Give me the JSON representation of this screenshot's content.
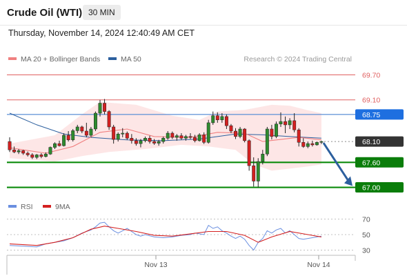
{
  "header": {
    "title": "Crude Oil (WTI)",
    "timeframe": "30 MIN",
    "datetime": "Thursday, November 14, 2024 12:40:49 AM CET"
  },
  "legend": {
    "ma20": "MA 20 + Bollinger Bands",
    "ma50": "MA 50",
    "attribution": "Research © 2024 Trading Central",
    "rsi": "RSI",
    "rsi_ma": "9MA"
  },
  "colors": {
    "bull": "#2e8b2e",
    "bear": "#d42020",
    "ma20": "#f08080",
    "ma50": "#2c5f9e",
    "band_fill": "#fde2e2",
    "resistance": "#e06060",
    "pivot_blue": "#5b8fd6",
    "support": "#0a8a0a",
    "current": "#333333",
    "arrow": "#2c5f9e",
    "rsi": "#6a8fe0",
    "rsi_ma": "#d42020"
  },
  "chart_data": [
    {
      "type": "candlestick",
      "series": "Crude Oil (WTI) 30 MIN",
      "ylim": [
        66.86,
        69.84
      ],
      "x_ticks": [
        "Nov 13",
        "Nov 14"
      ],
      "levels": [
        {
          "value": 69.7,
          "label": "69.70",
          "kind": "resistance"
        },
        {
          "value": 69.1,
          "label": "69.10",
          "kind": "resistance"
        },
        {
          "value": 68.75,
          "label": "68.75",
          "kind": "pivot"
        },
        {
          "value": 68.1,
          "label": "68.10",
          "kind": "current"
        },
        {
          "value": 67.6,
          "label": "67.60",
          "kind": "support"
        },
        {
          "value": 67.0,
          "label": "67.00",
          "kind": "support"
        }
      ],
      "candles": [
        [
          68.1,
          68.2,
          67.85,
          67.9
        ],
        [
          67.9,
          67.98,
          67.82,
          67.85
        ],
        [
          67.85,
          67.92,
          67.8,
          67.88
        ],
        [
          67.88,
          67.9,
          67.78,
          67.82
        ],
        [
          67.82,
          67.86,
          67.74,
          67.78
        ],
        [
          67.78,
          67.82,
          67.68,
          67.72
        ],
        [
          67.72,
          67.8,
          67.68,
          67.78
        ],
        [
          67.78,
          67.82,
          67.7,
          67.74
        ],
        [
          67.74,
          67.84,
          67.72,
          67.8
        ],
        [
          67.8,
          67.98,
          67.78,
          67.96
        ],
        [
          67.96,
          68.08,
          67.92,
          68.05
        ],
        [
          68.05,
          68.12,
          67.98,
          68.0
        ],
        [
          68.0,
          68.3,
          67.98,
          68.25
        ],
        [
          68.25,
          68.35,
          68.1,
          68.14
        ],
        [
          68.14,
          68.4,
          68.1,
          68.36
        ],
        [
          68.36,
          68.5,
          68.3,
          68.45
        ],
        [
          68.45,
          68.48,
          68.3,
          68.35
        ],
        [
          68.35,
          68.55,
          68.2,
          68.25
        ],
        [
          68.25,
          68.45,
          68.2,
          68.4
        ],
        [
          68.4,
          68.82,
          68.35,
          68.78
        ],
        [
          68.78,
          69.1,
          68.7,
          69.02
        ],
        [
          69.02,
          69.12,
          68.75,
          68.82
        ],
        [
          68.82,
          68.85,
          68.38,
          68.45
        ],
        [
          68.45,
          68.5,
          68.05,
          68.15
        ],
        [
          68.15,
          68.32,
          68.1,
          68.28
        ],
        [
          68.28,
          68.42,
          68.2,
          68.3
        ],
        [
          68.3,
          68.34,
          68.14,
          68.18
        ],
        [
          68.18,
          68.28,
          68.05,
          68.12
        ],
        [
          68.12,
          68.18,
          68.0,
          68.05
        ],
        [
          68.05,
          68.16,
          67.96,
          68.12
        ],
        [
          68.12,
          68.22,
          68.08,
          68.18
        ],
        [
          68.18,
          68.24,
          68.05,
          68.1
        ],
        [
          68.1,
          68.16,
          68.02,
          68.06
        ],
        [
          68.06,
          68.14,
          68.0,
          68.1
        ],
        [
          68.1,
          68.22,
          68.05,
          68.18
        ],
        [
          68.18,
          68.35,
          68.14,
          68.3
        ],
        [
          68.3,
          68.34,
          68.16,
          68.2
        ],
        [
          68.2,
          68.28,
          68.12,
          68.24
        ],
        [
          68.24,
          68.3,
          68.14,
          68.18
        ],
        [
          68.18,
          68.26,
          68.12,
          68.22
        ],
        [
          68.22,
          68.3,
          68.16,
          68.2
        ],
        [
          68.2,
          68.26,
          68.08,
          68.12
        ],
        [
          68.12,
          68.3,
          68.1,
          68.26
        ],
        [
          68.26,
          68.32,
          68.04,
          68.08
        ],
        [
          68.08,
          68.62,
          68.05,
          68.55
        ],
        [
          68.55,
          68.82,
          68.5,
          68.72
        ],
        [
          68.72,
          68.8,
          68.55,
          68.62
        ],
        [
          68.62,
          68.78,
          68.55,
          68.7
        ],
        [
          68.7,
          68.75,
          68.4,
          68.48
        ],
        [
          68.48,
          68.52,
          68.3,
          68.35
        ],
        [
          68.35,
          68.42,
          68.16,
          68.22
        ],
        [
          68.22,
          68.45,
          68.18,
          68.4
        ],
        [
          68.4,
          68.42,
          68.08,
          68.12
        ],
        [
          68.12,
          68.15,
          67.4,
          67.52
        ],
        [
          67.52,
          67.72,
          67.02,
          67.15
        ],
        [
          67.15,
          67.7,
          67.0,
          67.62
        ],
        [
          67.62,
          67.9,
          67.55,
          67.8
        ],
        [
          67.8,
          68.45,
          67.75,
          68.4
        ],
        [
          68.4,
          68.5,
          68.15,
          68.22
        ],
        [
          68.22,
          68.58,
          68.18,
          68.52
        ],
        [
          68.52,
          68.8,
          68.45,
          68.58
        ],
        [
          68.58,
          68.7,
          68.3,
          68.5
        ],
        [
          68.5,
          68.66,
          68.4,
          68.6
        ],
        [
          68.6,
          68.78,
          68.32,
          68.38
        ],
        [
          68.38,
          68.42,
          67.98,
          68.08
        ],
        [
          68.08,
          68.18,
          67.95,
          67.98
        ],
        [
          67.98,
          68.1,
          67.94,
          68.05
        ],
        [
          68.05,
          68.12,
          67.98,
          68.02
        ],
        [
          68.02,
          68.1,
          68.0,
          68.08
        ],
        [
          68.08,
          68.12,
          68.04,
          68.1
        ]
      ],
      "ma20": [
        [
          0,
          67.95
        ],
        [
          8,
          67.82
        ],
        [
          14,
          67.98
        ],
        [
          20,
          68.32
        ],
        [
          26,
          68.4
        ],
        [
          32,
          68.22
        ],
        [
          40,
          68.2
        ],
        [
          46,
          68.32
        ],
        [
          52,
          68.3
        ],
        [
          56,
          68.1
        ],
        [
          60,
          68.15
        ],
        [
          64,
          68.2
        ],
        [
          69,
          68.14
        ]
      ],
      "bollinger_upper": [
        [
          0,
          68.05
        ],
        [
          10,
          68.25
        ],
        [
          16,
          68.75
        ],
        [
          20,
          69.05
        ],
        [
          28,
          68.98
        ],
        [
          36,
          68.72
        ],
        [
          42,
          68.62
        ],
        [
          46,
          68.82
        ],
        [
          52,
          68.86
        ],
        [
          58,
          68.98
        ],
        [
          62,
          68.96
        ],
        [
          66,
          68.85
        ],
        [
          69,
          68.78
        ]
      ],
      "bollinger_lower": [
        [
          0,
          67.7
        ],
        [
          10,
          67.62
        ],
        [
          16,
          67.75
        ],
        [
          22,
          67.85
        ],
        [
          30,
          67.92
        ],
        [
          38,
          68.02
        ],
        [
          44,
          67.98
        ],
        [
          50,
          67.9
        ],
        [
          54,
          67.55
        ],
        [
          58,
          67.4
        ],
        [
          62,
          67.45
        ],
        [
          66,
          67.5
        ],
        [
          69,
          67.55
        ]
      ],
      "ma50": [
        [
          0,
          68.78
        ],
        [
          6,
          68.5
        ],
        [
          12,
          68.28
        ],
        [
          18,
          68.2
        ],
        [
          26,
          68.14
        ],
        [
          34,
          68.12
        ],
        [
          42,
          68.16
        ],
        [
          50,
          68.28
        ],
        [
          56,
          68.26
        ],
        [
          62,
          68.22
        ],
        [
          69,
          68.18
        ]
      ],
      "forecast_arrow": {
        "from": 68.1,
        "to": 67.0
      }
    },
    {
      "type": "line",
      "series": [
        {
          "name": "RSI"
        },
        {
          "name": "9MA"
        }
      ],
      "ylim": [
        25,
        75
      ],
      "y_ticks": [
        70,
        50,
        30
      ],
      "rsi": [
        [
          0,
          36
        ],
        [
          3,
          35
        ],
        [
          6,
          34
        ],
        [
          8,
          38
        ],
        [
          10,
          40
        ],
        [
          12,
          42
        ],
        [
          14,
          46
        ],
        [
          16,
          52
        ],
        [
          18,
          56
        ],
        [
          19,
          60
        ],
        [
          20,
          65
        ],
        [
          21,
          66
        ],
        [
          22,
          60
        ],
        [
          23,
          55
        ],
        [
          24,
          52
        ],
        [
          25,
          55
        ],
        [
          26,
          58
        ],
        [
          27,
          54
        ],
        [
          28,
          50
        ],
        [
          29,
          48
        ],
        [
          30,
          50
        ],
        [
          32,
          47
        ],
        [
          34,
          46
        ],
        [
          36,
          47
        ],
        [
          38,
          49
        ],
        [
          40,
          50
        ],
        [
          41,
          52
        ],
        [
          43,
          50
        ],
        [
          44,
          62
        ],
        [
          45,
          58
        ],
        [
          46,
          60
        ],
        [
          47,
          55
        ],
        [
          48,
          52
        ],
        [
          49,
          48
        ],
        [
          50,
          45
        ],
        [
          51,
          48
        ],
        [
          52,
          44
        ],
        [
          53,
          36
        ],
        [
          54,
          30
        ],
        [
          55,
          40
        ],
        [
          56,
          45
        ],
        [
          57,
          55
        ],
        [
          58,
          52
        ],
        [
          59,
          56
        ],
        [
          60,
          58
        ],
        [
          61,
          52
        ],
        [
          62,
          55
        ],
        [
          63,
          50
        ],
        [
          64,
          45
        ],
        [
          65,
          44
        ],
        [
          66,
          45
        ],
        [
          67,
          46
        ],
        [
          68,
          47
        ],
        [
          69,
          48
        ]
      ],
      "rsi_ma": [
        [
          0,
          38
        ],
        [
          6,
          36
        ],
        [
          10,
          40
        ],
        [
          14,
          46
        ],
        [
          18,
          57
        ],
        [
          21,
          61
        ],
        [
          24,
          58
        ],
        [
          28,
          54
        ],
        [
          32,
          49
        ],
        [
          36,
          48
        ],
        [
          40,
          51
        ],
        [
          44,
          54
        ],
        [
          48,
          54
        ],
        [
          52,
          49
        ],
        [
          55,
          40
        ],
        [
          58,
          47
        ],
        [
          62,
          54
        ],
        [
          66,
          50
        ],
        [
          69,
          47
        ]
      ]
    }
  ]
}
